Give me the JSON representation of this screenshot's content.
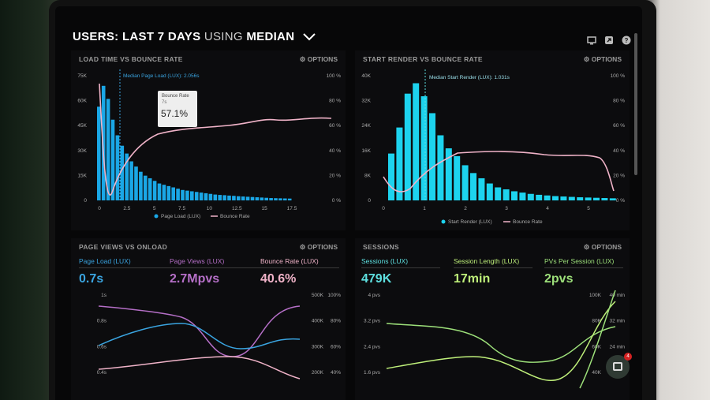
{
  "header": {
    "users": "USERS:",
    "last7": "LAST 7 DAYS",
    "using": "USING",
    "median": "MEDIAN"
  },
  "toolbar_icons": [
    "monitor-icon",
    "share-icon",
    "help-icon"
  ],
  "options_label": "OPTIONS",
  "panels": {
    "load": {
      "title": "LOAD TIME VS BOUNCE RATE",
      "median_label": "Median Page Load (LUX): 2.056s",
      "y_left": [
        "75K",
        "60K",
        "45K",
        "30K",
        "15K",
        "0"
      ],
      "y_right": [
        "100 %",
        "80 %",
        "60 %",
        "40 %",
        "20 %",
        "0 %"
      ],
      "x": [
        "0",
        "2.5",
        "5",
        "7.5",
        "10",
        "12.5",
        "15",
        "17.5"
      ],
      "legend_a": "Page Load (LUX)",
      "legend_b": "Bounce Rate",
      "tooltip_title": "Bounce Rate",
      "tooltip_sub": "7s",
      "tooltip_value": "57.1%"
    },
    "render": {
      "title": "START RENDER VS BOUNCE RATE",
      "median_label": "Median Start Render (LUX): 1.031s",
      "y_left": [
        "40K",
        "32K",
        "24K",
        "16K",
        "8K",
        "0"
      ],
      "y_right": [
        "100 %",
        "80 %",
        "60 %",
        "40 %",
        "20 %",
        "0 %"
      ],
      "x": [
        "0",
        "1",
        "2",
        "3",
        "4",
        "5"
      ],
      "legend_a": "Start Render (LUX)",
      "legend_b": "Bounce Rate"
    },
    "views": {
      "title": "PAGE VIEWS VS ONLOAD",
      "m1_label": "Page Load (LUX)",
      "m1_value": "0.7s",
      "m2_label": "Page Views (LUX)",
      "m2_value": "2.7Mpvs",
      "m3_label": "Bounce Rate (LUX)",
      "m3_value": "40.6%",
      "y_left": [
        "1s",
        "0.8s",
        "0.6s",
        "0.4s"
      ],
      "y_mid": [
        "500K",
        "400K",
        "300K",
        "200K"
      ],
      "y_right": [
        "100%",
        "80%",
        "60%",
        "40%"
      ]
    },
    "sessions": {
      "title": "SESSIONS",
      "m1_label": "Sessions (LUX)",
      "m1_value": "479K",
      "m2_label": "Session Length (LUX)",
      "m2_value": "17min",
      "m3_label": "PVs Per Session (LUX)",
      "m3_value": "2pvs",
      "y_left": [
        "4 pvs",
        "3.2 pvs",
        "2.4 pvs",
        "1.6 pvs"
      ],
      "y_mid": [
        "100K",
        "80K",
        "60K",
        "40K"
      ],
      "y_right": [
        "40 min",
        "32 min",
        "24 min",
        "16 min"
      ]
    }
  },
  "chat_badge": "4",
  "colors": {
    "blue_bar": "#1aa7e6",
    "cyan_bar": "#1dd3ee",
    "pink": "#f0b3c8",
    "blue_line": "#3aa4e0",
    "purple_line": "#b56fc7",
    "green": "#9de07a",
    "teal_metric": "#5ee0e0"
  }
}
